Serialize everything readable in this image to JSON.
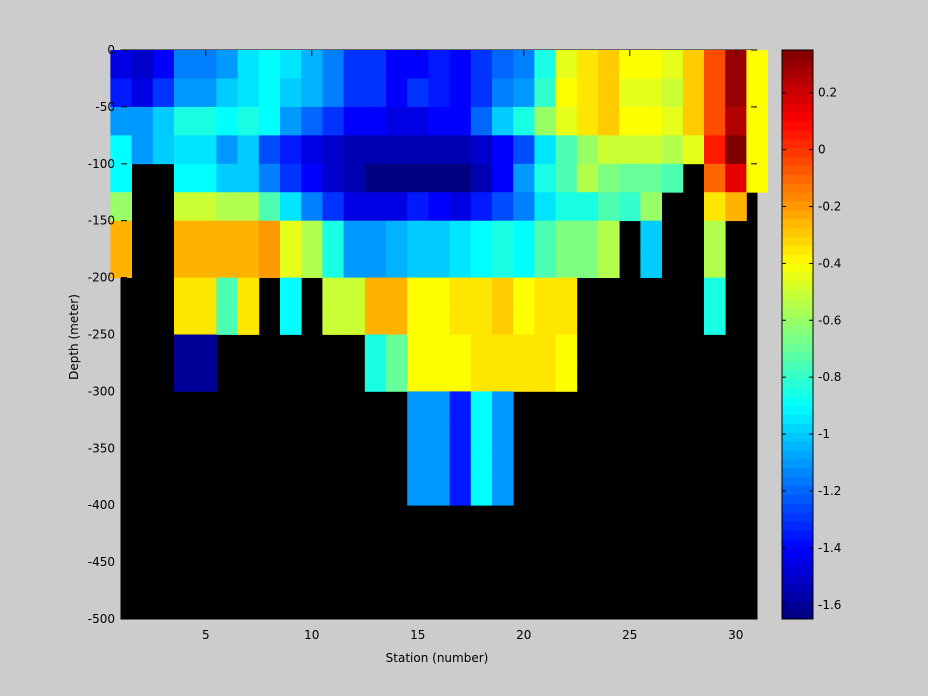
{
  "chart_data": {
    "type": "heatmap",
    "xlabel": "Station (number)",
    "ylabel": "Depth (meter)",
    "xlim": [
      1,
      31
    ],
    "ylim": [
      -500,
      0
    ],
    "x_ticks": [
      5,
      10,
      15,
      20,
      25,
      30
    ],
    "y_ticks": [
      0,
      -50,
      -100,
      -150,
      -200,
      -250,
      -300,
      -350,
      -400,
      -450,
      -500
    ],
    "colorbar": {
      "colormap": "jet",
      "clim": [
        -1.65,
        0.35
      ],
      "ticks": [
        0.2,
        0,
        -0.2,
        -0.4,
        -0.6,
        -0.8,
        -1,
        -1.2,
        -1.4,
        -1.6
      ],
      "tick_labels": [
        "0.2",
        "0",
        "-0.2",
        "-0.4",
        "-0.6",
        "-0.8",
        "-1",
        "-1.2",
        "-1.4",
        "-1.6"
      ]
    },
    "stations": [
      1,
      2,
      3,
      4,
      5,
      6,
      7,
      8,
      9,
      10,
      11,
      12,
      13,
      14,
      15,
      16,
      17,
      18,
      19,
      20,
      21,
      22,
      23,
      24,
      25,
      26,
      27,
      28,
      29,
      30,
      31
    ],
    "depths": [
      -25,
      -50,
      -75,
      -100,
      -125,
      -150,
      -175,
      -200,
      -225,
      -250,
      -275,
      -300,
      -325,
      -350,
      -375,
      -400
    ],
    "no_data_color": "#000000",
    "values": [
      [
        -1.45,
        -1.5,
        -1.4,
        -1.15,
        -1.15,
        -1.1,
        -0.95,
        -0.9,
        -0.95,
        -1.05,
        -1.15,
        -1.3,
        -1.3,
        -1.4,
        -1.4,
        -1.35,
        -1.4,
        -1.3,
        -1.2,
        -1.15,
        -0.85,
        -0.45,
        -0.35,
        -0.3,
        -0.4,
        -0.4,
        -0.45,
        -0.3,
        -0.05,
        0.3,
        -0.4
      ],
      [
        -1.35,
        -1.45,
        -1.3,
        -1.1,
        -1.1,
        -1.0,
        -0.95,
        -0.9,
        -1.0,
        -1.05,
        -1.15,
        -1.3,
        -1.3,
        -1.4,
        -1.3,
        -1.35,
        -1.4,
        -1.3,
        -1.15,
        -1.1,
        -0.8,
        -0.4,
        -0.35,
        -0.3,
        -0.45,
        -0.45,
        -0.5,
        -0.3,
        -0.05,
        0.3,
        -0.4
      ],
      [
        -1.1,
        -1.1,
        -1.0,
        -0.85,
        -0.85,
        -0.9,
        -0.85,
        -0.9,
        -1.1,
        -1.2,
        -1.3,
        -1.4,
        -1.4,
        -1.45,
        -1.45,
        -1.4,
        -1.4,
        -1.2,
        -1.0,
        -0.85,
        -0.6,
        -0.45,
        -0.35,
        -0.3,
        -0.4,
        -0.4,
        -0.45,
        -0.3,
        -0.05,
        0.25,
        -0.4
      ],
      [
        -0.9,
        -1.1,
        -1.0,
        -0.95,
        -0.95,
        -1.1,
        -1.0,
        -1.25,
        -1.35,
        -1.45,
        -1.5,
        -1.55,
        -1.55,
        -1.55,
        -1.55,
        -1.55,
        -1.55,
        -1.5,
        -1.4,
        -1.25,
        -0.95,
        -0.75,
        -0.6,
        -0.5,
        -0.5,
        -0.5,
        -0.55,
        -0.45,
        0.05,
        0.35,
        -0.4
      ],
      [
        -0.9,
        null,
        null,
        -0.9,
        -0.9,
        -1.0,
        -1.0,
        -1.15,
        -1.3,
        -1.4,
        -1.5,
        -1.55,
        -1.65,
        -1.65,
        -1.65,
        -1.65,
        -1.65,
        -1.55,
        -1.4,
        -1.1,
        -0.85,
        -0.75,
        -0.55,
        -0.65,
        -0.7,
        -0.7,
        -0.75,
        null,
        -0.1,
        0.15,
        -0.4
      ],
      [
        -0.6,
        null,
        null,
        -0.5,
        -0.5,
        -0.55,
        -0.55,
        -0.75,
        -0.95,
        -1.15,
        -1.3,
        -1.45,
        -1.45,
        -1.45,
        -1.35,
        -1.4,
        -1.45,
        -1.35,
        -1.25,
        -1.15,
        -0.95,
        -0.85,
        -0.85,
        -0.75,
        -0.8,
        -0.6,
        null,
        null,
        -0.35,
        -0.25,
        null
      ],
      [
        -0.25,
        null,
        null,
        -0.25,
        -0.25,
        -0.25,
        -0.25,
        -0.2,
        -0.45,
        -0.55,
        -0.85,
        -1.1,
        -1.1,
        -1.05,
        -1.0,
        -1.0,
        -0.95,
        -0.9,
        -0.85,
        -0.9,
        -0.75,
        -0.65,
        -0.65,
        -0.55,
        null,
        -1.0,
        null,
        null,
        -0.55,
        null,
        null
      ],
      [
        -0.25,
        null,
        null,
        -0.25,
        -0.25,
        -0.25,
        -0.25,
        -0.2,
        -0.45,
        -0.55,
        -0.85,
        -1.1,
        -1.1,
        -1.05,
        -1.0,
        -1.0,
        -0.95,
        -0.9,
        -0.85,
        -0.9,
        -0.75,
        -0.65,
        -0.65,
        -0.55,
        null,
        -1.0,
        null,
        null,
        -0.55,
        null,
        null
      ],
      [
        null,
        null,
        null,
        -0.35,
        -0.35,
        -0.75,
        -0.35,
        null,
        -0.9,
        null,
        -0.5,
        -0.5,
        -0.25,
        -0.25,
        -0.4,
        -0.4,
        -0.35,
        -0.35,
        -0.3,
        -0.4,
        -0.35,
        -0.35,
        null,
        null,
        null,
        null,
        null,
        null,
        -0.85,
        null,
        null
      ],
      [
        null,
        null,
        null,
        -0.35,
        -0.35,
        -0.75,
        -0.35,
        null,
        -0.9,
        null,
        -0.5,
        -0.5,
        -0.25,
        -0.25,
        -0.4,
        -0.4,
        -0.35,
        -0.35,
        -0.3,
        -0.4,
        -0.35,
        -0.35,
        null,
        null,
        null,
        null,
        null,
        null,
        -0.85,
        null,
        null
      ],
      [
        null,
        null,
        null,
        -1.6,
        -1.6,
        null,
        null,
        null,
        null,
        null,
        null,
        null,
        -0.85,
        -0.7,
        -0.4,
        -0.4,
        -0.4,
        -0.35,
        -0.35,
        -0.35,
        -0.35,
        -0.4,
        null,
        null,
        null,
        null,
        null,
        null,
        null,
        null,
        null
      ],
      [
        null,
        null,
        null,
        -1.6,
        -1.6,
        null,
        null,
        null,
        null,
        null,
        null,
        null,
        -0.85,
        -0.7,
        -0.4,
        -0.4,
        -0.4,
        -0.35,
        -0.35,
        -0.35,
        -0.35,
        -0.4,
        null,
        null,
        null,
        null,
        null,
        null,
        null,
        null,
        null
      ],
      [
        null,
        null,
        null,
        null,
        null,
        null,
        null,
        null,
        null,
        null,
        null,
        null,
        null,
        null,
        -1.1,
        -1.1,
        -1.35,
        -0.9,
        -1.1,
        null,
        null,
        null,
        null,
        null,
        null,
        null,
        null,
        null,
        null,
        null,
        null
      ],
      [
        null,
        null,
        null,
        null,
        null,
        null,
        null,
        null,
        null,
        null,
        null,
        null,
        null,
        null,
        -1.1,
        -1.1,
        -1.35,
        -0.9,
        -1.1,
        null,
        null,
        null,
        null,
        null,
        null,
        null,
        null,
        null,
        null,
        null,
        null
      ],
      [
        null,
        null,
        null,
        null,
        null,
        null,
        null,
        null,
        null,
        null,
        null,
        null,
        null,
        null,
        -1.1,
        -1.1,
        -1.35,
        -0.9,
        -1.1,
        null,
        null,
        null,
        null,
        null,
        null,
        null,
        null,
        null,
        null,
        null,
        null
      ],
      [
        null,
        null,
        null,
        null,
        null,
        null,
        null,
        null,
        null,
        null,
        null,
        null,
        null,
        null,
        -1.1,
        -1.1,
        -1.35,
        -0.9,
        -1.1,
        null,
        null,
        null,
        null,
        null,
        null,
        null,
        null,
        null,
        null,
        null,
        null
      ]
    ]
  }
}
